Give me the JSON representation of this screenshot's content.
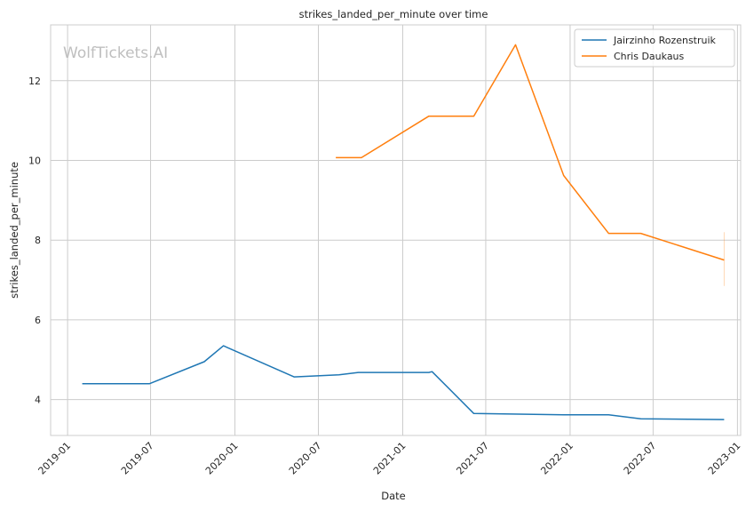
{
  "watermark": "WolfTickets.AI",
  "chart_data": {
    "type": "line",
    "title": "strikes_landed_per_minute over time",
    "xlabel": "Date",
    "ylabel": "strikes_landed_per_minute",
    "xlim": [
      "2018-11-25",
      "2023-01-08"
    ],
    "ylim": [
      3.1,
      13.4
    ],
    "x_ticks": [
      "2019-01",
      "2019-07",
      "2020-01",
      "2020-07",
      "2021-01",
      "2021-07",
      "2022-01",
      "2022-07",
      "2023-01"
    ],
    "y_ticks": [
      4,
      6,
      8,
      10,
      12
    ],
    "grid": true,
    "legend": "top-right",
    "series": [
      {
        "name": "Jairzinho Rozenstruik",
        "color": "#1f77b4",
        "points": [
          [
            "2019-02-02",
            4.4
          ],
          [
            "2019-06-29",
            4.4
          ],
          [
            "2019-10-26",
            4.95
          ],
          [
            "2019-12-07",
            5.35
          ],
          [
            "2020-05-09",
            4.57
          ],
          [
            "2020-08-15",
            4.62
          ],
          [
            "2020-09-26",
            4.68
          ],
          [
            "2021-02-27",
            4.68
          ],
          [
            "2021-03-06",
            4.7
          ],
          [
            "2021-06-05",
            3.65
          ],
          [
            "2021-12-18",
            3.62
          ],
          [
            "2022-03-26",
            3.62
          ],
          [
            "2022-06-04",
            3.52
          ],
          [
            "2022-12-03",
            3.5
          ]
        ]
      },
      {
        "name": "Chris Daukaus",
        "color": "#ff7f0e",
        "points": [
          [
            "2020-08-08",
            10.07
          ],
          [
            "2020-10-03",
            10.07
          ],
          [
            "2021-02-27",
            11.11
          ],
          [
            "2021-06-05",
            11.11
          ],
          [
            "2021-09-04",
            12.9
          ],
          [
            "2021-12-18",
            9.62
          ],
          [
            "2022-03-26",
            8.17
          ],
          [
            "2022-06-04",
            8.17
          ],
          [
            "2022-12-03",
            7.5
          ]
        ],
        "error_bar": {
          "x": "2022-12-03",
          "low": 6.85,
          "high": 8.2
        }
      }
    ]
  }
}
